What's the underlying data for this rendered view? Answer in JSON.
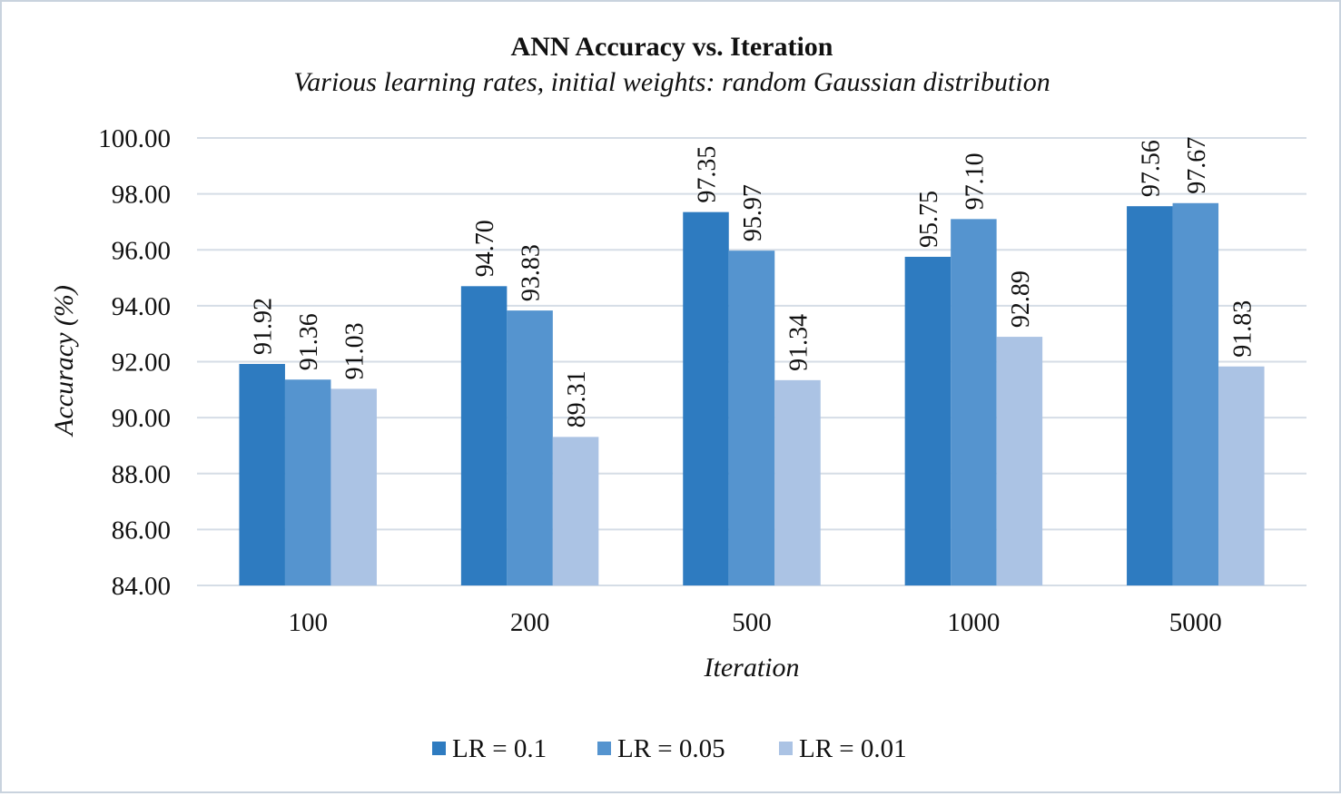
{
  "chart_data": {
    "type": "bar",
    "title": "ANN Accuracy vs. Iteration",
    "subtitle": "Various learning rates, initial weights: random Gaussian distribution",
    "xlabel": "Iteration",
    "ylabel": "Accuracy (%)",
    "categories": [
      "100",
      "200",
      "500",
      "1000",
      "5000"
    ],
    "ylim": [
      84,
      100
    ],
    "yticks": [
      84,
      86,
      88,
      90,
      92,
      94,
      96,
      98,
      100
    ],
    "ytick_labels": [
      "84.00",
      "86.00",
      "88.00",
      "90.00",
      "92.00",
      "94.00",
      "96.00",
      "98.00",
      "100.00"
    ],
    "grid": true,
    "legend_position": "bottom",
    "series": [
      {
        "name": "LR = 0.1",
        "color": "#2e7bc0",
        "values": [
          91.92,
          94.7,
          97.35,
          95.75,
          97.56
        ],
        "labels": [
          "91.92",
          "94.70",
          "97.35",
          "95.75",
          "97.56"
        ]
      },
      {
        "name": "LR = 0.05",
        "color": "#5594cf",
        "values": [
          91.36,
          93.83,
          95.97,
          97.1,
          97.67
        ],
        "labels": [
          "91.36",
          "93.83",
          "95.97",
          "97.10",
          "97.67"
        ]
      },
      {
        "name": "LR = 0.01",
        "color": "#abc3e4",
        "values": [
          91.03,
          89.31,
          91.34,
          92.89,
          91.83
        ],
        "labels": [
          "91.03",
          "89.31",
          "91.34",
          "92.89",
          "91.83"
        ]
      }
    ]
  }
}
